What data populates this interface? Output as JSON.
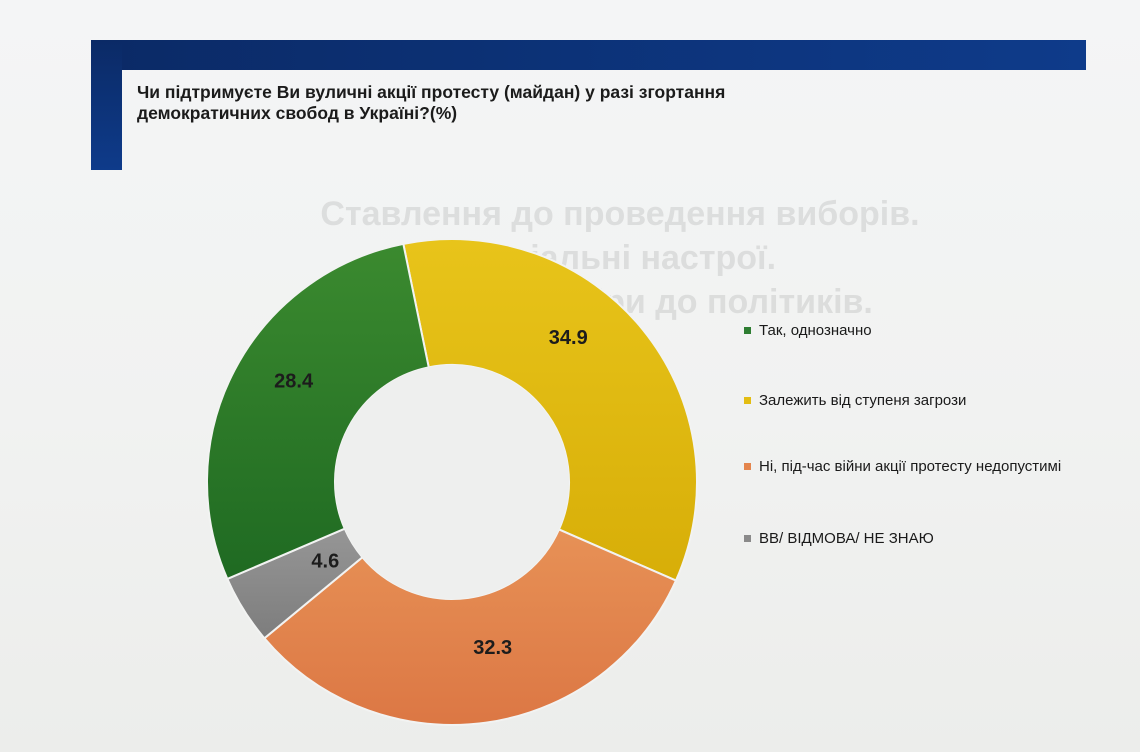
{
  "slide": {
    "title": "Чи підтримуєте Ви вуличні акції протесту (майдан) у разі згортання демократичних свобод в Україні?(%)",
    "ghost_text": "Ставлення до проведення виборів.\nСоціальні настрої.\nРейтинги довіри до політиків."
  },
  "chart_data": {
    "type": "pie",
    "donut": true,
    "title": "Чи підтримуєте Ви вуличні акції протесту (майдан) у разі згортання демократичних свобод в Україні?(%)",
    "categories": [
      "Так, однозначно",
      "Залежить від ступеня загрози",
      "Ні, під-час війни акції протесту недопустимі",
      "ВВ/ ВІДМОВА/ НЕ ЗНАЮ"
    ],
    "values": [
      28.4,
      34.9,
      32.3,
      4.6
    ],
    "value_labels": [
      "28.4",
      "34.9",
      "32.3",
      "4.6"
    ],
    "colors": [
      "#2e7d32",
      "#e3bd12",
      "#e4854d",
      "#8a8a8a"
    ],
    "legend_position": "right"
  }
}
